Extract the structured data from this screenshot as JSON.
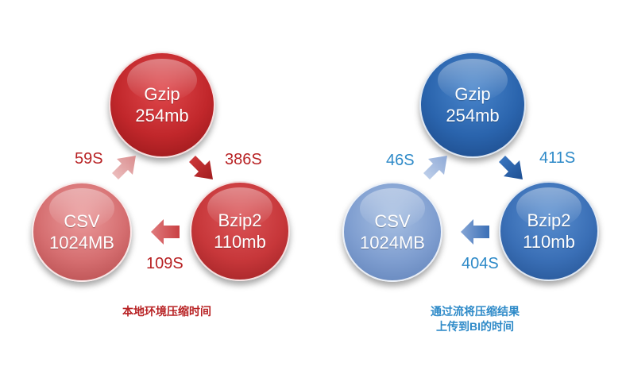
{
  "colors": {
    "red_accent": "#b82224",
    "blue_accent": "#2e8ac8"
  },
  "local": {
    "gzip": {
      "name": "Gzip",
      "size": "254mb"
    },
    "bzip2": {
      "name": "Bzip2",
      "size": "110mb"
    },
    "csv": {
      "name": "CSV",
      "size": "1024MB"
    },
    "t_csv_to_gzip": "59S",
    "t_gzip_to_bzip2": "386S",
    "t_bzip2_to_csv": "109S",
    "caption": "本地环境压缩时间"
  },
  "remote": {
    "gzip": {
      "name": "Gzip",
      "size": "254mb"
    },
    "bzip2": {
      "name": "Bzip2",
      "size": "110mb"
    },
    "csv": {
      "name": "CSV",
      "size": "1024MB"
    },
    "t_csv_to_gzip": "46S",
    "t_gzip_to_bzip2": "411S",
    "t_bzip2_to_csv": "404S",
    "caption_line1": "通过流将压缩结果",
    "caption_line2": "上传到BI的时间"
  }
}
